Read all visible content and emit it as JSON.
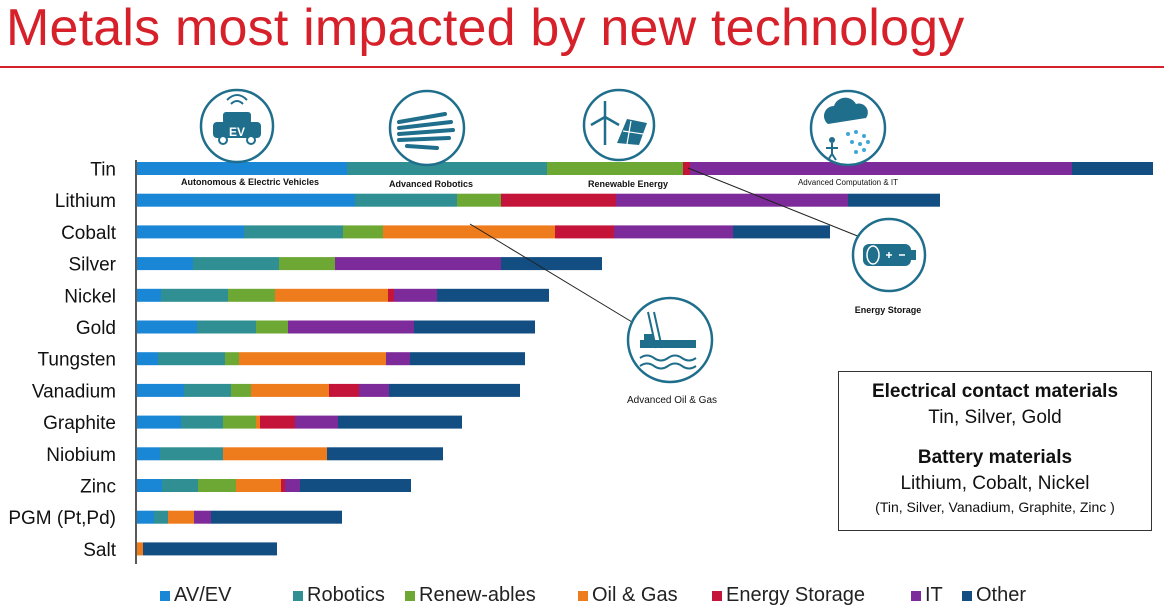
{
  "title": "Metals most impacted by new technology",
  "chart_data": {
    "type": "bar",
    "orientation": "horizontal",
    "stacked": true,
    "title": "Metals most impacted by new technology",
    "categories": [
      "Tin",
      "Lithium",
      "Cobalt",
      "Silver",
      "Nickel",
      "Gold",
      "Tungsten",
      "Vanadium",
      "Graphite",
      "Niobium",
      "Zinc",
      "PGM (Pt,Pd)",
      "Salt"
    ],
    "series": [
      {
        "name": "AV/EV",
        "color": "#1a86d6",
        "values": [
          210,
          218,
          107,
          56,
          24,
          60,
          21,
          47,
          44,
          23,
          25,
          17,
          0
        ]
      },
      {
        "name": "Robotics",
        "color": "#2f8f93",
        "values": [
          200,
          102,
          99,
          86,
          67,
          59,
          67,
          47,
          42,
          63,
          36,
          14,
          0
        ]
      },
      {
        "name": "Renew-ables",
        "color": "#6da834",
        "values": [
          136,
          44,
          40,
          56,
          47,
          32,
          14,
          20,
          33,
          0,
          38,
          0,
          0
        ]
      },
      {
        "name": "Oil & Gas",
        "color": "#ef7c1c",
        "values": [
          0,
          0,
          172,
          0,
          113,
          0,
          147,
          78,
          4,
          104,
          45,
          26,
          6
        ]
      },
      {
        "name": "Energy Storage",
        "color": "#c4143a",
        "values": [
          7,
          115,
          59,
          0,
          6,
          0,
          0,
          30,
          35,
          0,
          4,
          0,
          0
        ]
      },
      {
        "name": "IT",
        "color": "#7d2a9a",
        "values": [
          382,
          232,
          119,
          166,
          43,
          126,
          24,
          30,
          43,
          0,
          15,
          17,
          0
        ]
      },
      {
        "name": "Other",
        "color": "#124e82",
        "values": [
          81,
          92,
          97,
          101,
          112,
          121,
          115,
          131,
          124,
          116,
          111,
          131,
          134
        ]
      }
    ],
    "technology_labels": [
      "Autonomous & Electric Vehicles",
      "Advanced Robotics",
      "Renewable Energy",
      "Advanced Computation & IT",
      "Energy Storage",
      "Advanced Oil & Gas"
    ]
  },
  "icons": [
    "electric-vehicle-icon",
    "robotic-hand-icon",
    "renewable-energy-icon",
    "computation-cloud-icon",
    "battery-icon",
    "oil-rig-icon"
  ],
  "info_box": {
    "heading1": "Electrical contact materials",
    "text1": "Tin, Silver, Gold",
    "heading2": "Battery materials",
    "text2": "Lithium, Cobalt, Nickel",
    "text3": "(Tin, Silver, Vanadium, Graphite, Zinc )"
  }
}
